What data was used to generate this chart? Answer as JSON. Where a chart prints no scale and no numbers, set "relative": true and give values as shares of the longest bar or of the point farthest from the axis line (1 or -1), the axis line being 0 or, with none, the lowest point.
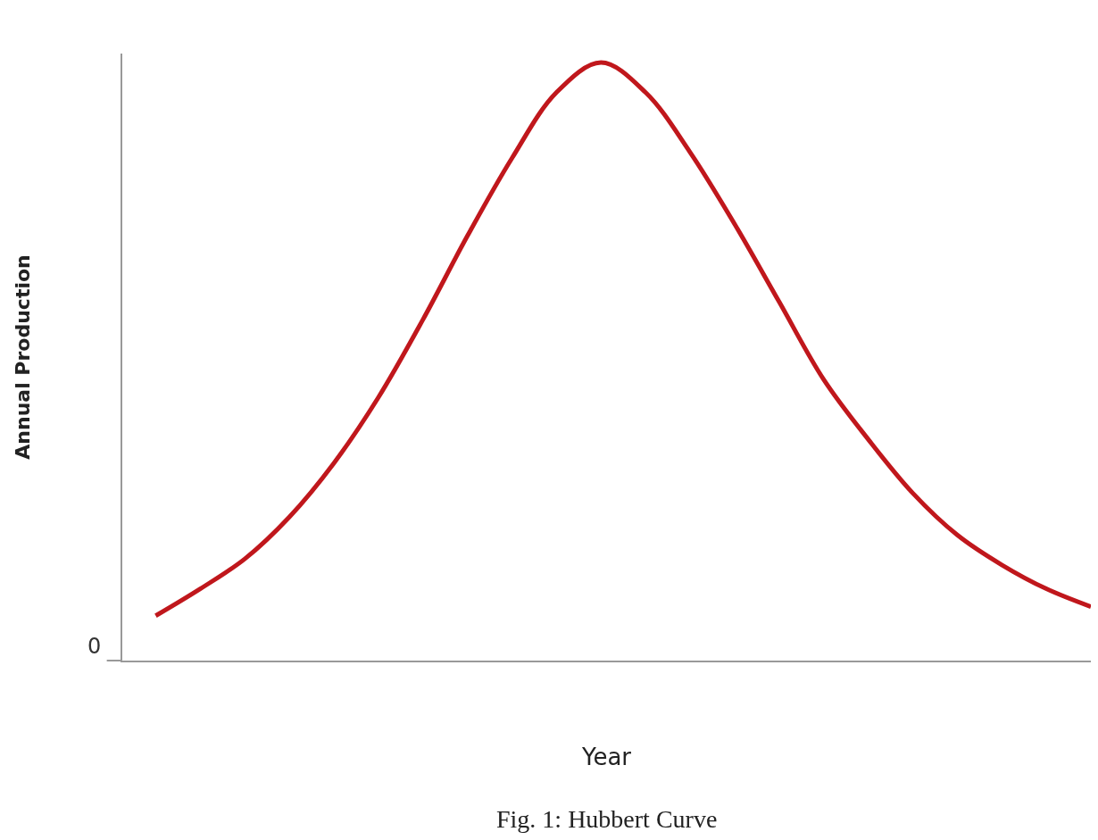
{
  "chart_data": {
    "type": "line",
    "relative": true,
    "xlabel": "Year",
    "ylabel": "Annual Production",
    "categories": [
      null,
      null,
      null,
      null,
      null,
      null,
      null,
      null,
      null,
      null,
      null,
      null,
      null,
      null,
      null,
      null,
      null,
      null,
      null,
      null,
      null,
      null
    ],
    "series": [
      {
        "color": "#c0171c",
        "values": [
          0.075,
          0.12,
          0.17,
          0.24,
          0.33,
          0.44,
          0.57,
          0.71,
          0.84,
          0.95,
          1.0,
          0.95,
          0.85,
          0.73,
          0.6,
          0.47,
          0.37,
          0.28,
          0.21,
          0.16,
          0.12,
          0.09
        ]
      }
    ],
    "annotations": [
      "0",
      "Fig. 1: Hubbert Curve"
    ],
    "marker": "none",
    "line_style": "solid"
  }
}
